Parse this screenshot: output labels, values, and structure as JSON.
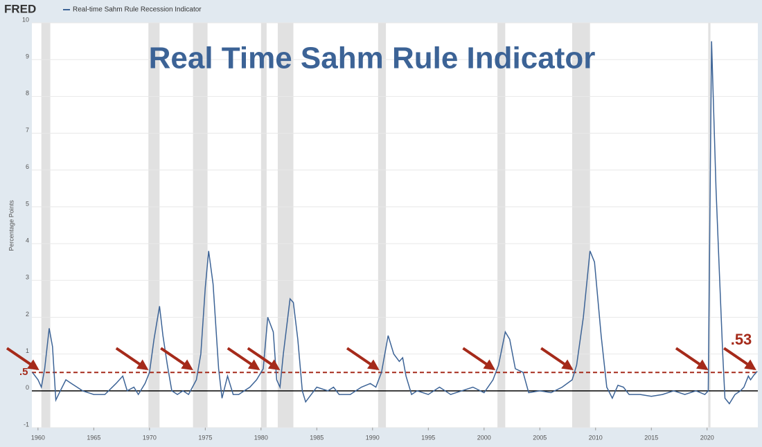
{
  "header": {
    "brand": "FRED"
  },
  "chart_data": {
    "type": "line",
    "title": "Real Time Sahm Rule Indicator",
    "y_label": "Percentage Points",
    "series": [
      {
        "name": "Real-time Sahm Rule Recession Indicator",
        "color": "#3c6396",
        "x": [
          1959.5,
          1960.0,
          1960.3,
          1960.6,
          1961.0,
          1961.3,
          1961.6,
          1962.0,
          1962.5,
          1963.0,
          1963.5,
          1964.0,
          1965.0,
          1966.0,
          1967.0,
          1967.6,
          1968.0,
          1968.6,
          1969.0,
          1969.6,
          1970.0,
          1970.4,
          1970.9,
          1971.2,
          1971.6,
          1972.0,
          1972.5,
          1973.0,
          1973.5,
          1974.2,
          1974.6,
          1975.0,
          1975.3,
          1975.7,
          1976.2,
          1976.5,
          1977.0,
          1977.5,
          1978.0,
          1978.5,
          1979.0,
          1979.6,
          1980.2,
          1980.6,
          1981.1,
          1981.4,
          1981.7,
          1982.0,
          1982.6,
          1982.9,
          1983.3,
          1983.7,
          1984.0,
          1984.5,
          1985.0,
          1986.0,
          1986.5,
          1987.0,
          1988.0,
          1988.5,
          1989.0,
          1989.8,
          1990.3,
          1990.8,
          1991.4,
          1991.9,
          1992.4,
          1992.7,
          1993.0,
          1993.5,
          1994.0,
          1995.0,
          1996.0,
          1997.0,
          1998.0,
          1999.0,
          2000.0,
          2000.8,
          2001.3,
          2001.9,
          2002.3,
          2002.8,
          2003.5,
          2004.0,
          2005.0,
          2006.0,
          2007.0,
          2007.9,
          2008.3,
          2008.9,
          2009.5,
          2009.9,
          2010.5,
          2011.0,
          2011.5,
          2012.0,
          2012.5,
          2013.0,
          2014.0,
          2015.0,
          2016.0,
          2017.0,
          2018.0,
          2019.0,
          2019.8,
          2020.1,
          2020.4,
          2020.8,
          2021.1,
          2021.4,
          2021.6,
          2022.0,
          2022.5,
          2023.0,
          2023.3,
          2023.7,
          2023.9,
          2024.2,
          2024.5
        ],
        "values": [
          0.5,
          0.3,
          0.1,
          0.6,
          1.7,
          1.2,
          -0.25,
          0.0,
          0.3,
          0.2,
          0.1,
          0.0,
          -0.1,
          -0.1,
          0.2,
          0.4,
          0.0,
          0.1,
          -0.1,
          0.2,
          0.5,
          1.4,
          2.3,
          1.5,
          0.7,
          0.0,
          -0.1,
          0.0,
          -0.1,
          0.3,
          1.0,
          2.8,
          3.8,
          2.9,
          0.6,
          -0.2,
          0.4,
          -0.1,
          -0.1,
          0.0,
          0.1,
          0.3,
          0.6,
          2.0,
          1.6,
          0.3,
          0.1,
          1.0,
          2.5,
          2.4,
          1.4,
          0.0,
          -0.3,
          -0.1,
          0.1,
          0.0,
          0.1,
          -0.1,
          -0.1,
          0.0,
          0.1,
          0.2,
          0.1,
          0.5,
          1.5,
          1.0,
          0.8,
          0.9,
          0.4,
          -0.1,
          0.0,
          -0.1,
          0.1,
          -0.1,
          0.0,
          0.1,
          -0.05,
          0.3,
          0.7,
          1.6,
          1.4,
          0.6,
          0.5,
          -0.05,
          0.0,
          -0.05,
          0.1,
          0.3,
          0.7,
          2.0,
          3.8,
          3.5,
          1.5,
          0.1,
          -0.2,
          0.15,
          0.1,
          -0.1,
          -0.1,
          -0.15,
          -0.1,
          0.0,
          -0.1,
          0.0,
          -0.1,
          0.0,
          9.5,
          5.5,
          3.2,
          1.0,
          -0.2,
          -0.35,
          -0.1,
          0.0,
          0.1,
          0.4,
          0.3,
          0.43,
          0.53
        ]
      }
    ],
    "recessions": [
      [
        1960.3,
        1961.1
      ],
      [
        1969.9,
        1970.9
      ],
      [
        1973.9,
        1975.2
      ],
      [
        1980.0,
        1980.5
      ],
      [
        1981.5,
        1982.9
      ],
      [
        1990.5,
        1991.2
      ],
      [
        2001.2,
        2001.9
      ],
      [
        2007.9,
        2009.5
      ],
      [
        2020.1,
        2020.3
      ]
    ],
    "threshold": {
      "value": 0.5,
      "label": ".5",
      "color": "#a52a1a"
    },
    "last_value": {
      "value": 0.53,
      "label": ".53"
    },
    "arrows": [
      1960.2,
      1970.0,
      1974.0,
      1980.0,
      1981.8,
      1990.7,
      2001.1,
      2008.1,
      2020.2,
      2024.5
    ],
    "xlim": [
      1959.45,
      2024.55
    ],
    "ylim": [
      -1,
      10
    ],
    "xticks": [
      1960,
      1965,
      1970,
      1975,
      1980,
      1985,
      1990,
      1995,
      2000,
      2005,
      2010,
      2015,
      2020
    ],
    "yticks": [
      -1,
      0,
      1,
      2,
      3,
      4,
      5,
      6,
      7,
      8,
      9,
      10
    ],
    "grid": true
  }
}
